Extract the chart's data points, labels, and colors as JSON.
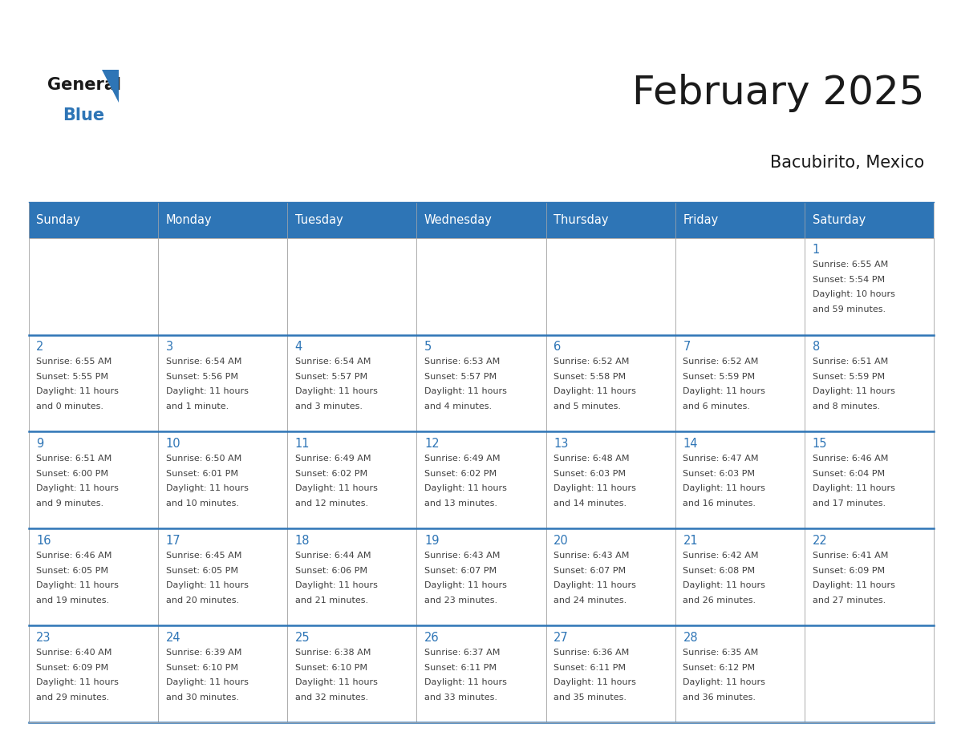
{
  "title": "February 2025",
  "subtitle": "Bacubirito, Mexico",
  "header_color": "#2E75B6",
  "header_text_color": "#FFFFFF",
  "day_names": [
    "Sunday",
    "Monday",
    "Tuesday",
    "Wednesday",
    "Thursday",
    "Friday",
    "Saturday"
  ],
  "background_color": "#FFFFFF",
  "cell_bg_color": "#FFFFFF",
  "separator_color": "#2E75B6",
  "day_number_color": "#2E75B6",
  "info_text_color": "#404040",
  "grid_color": "#AAAAAA",
  "calendar_data": [
    [
      null,
      null,
      null,
      null,
      null,
      null,
      {
        "day": 1,
        "sunrise": "6:55 AM",
        "sunset": "5:54 PM",
        "daylight_line1": "Daylight: 10 hours",
        "daylight_line2": "and 59 minutes."
      }
    ],
    [
      {
        "day": 2,
        "sunrise": "6:55 AM",
        "sunset": "5:55 PM",
        "daylight_line1": "Daylight: 11 hours",
        "daylight_line2": "and 0 minutes."
      },
      {
        "day": 3,
        "sunrise": "6:54 AM",
        "sunset": "5:56 PM",
        "daylight_line1": "Daylight: 11 hours",
        "daylight_line2": "and 1 minute."
      },
      {
        "day": 4,
        "sunrise": "6:54 AM",
        "sunset": "5:57 PM",
        "daylight_line1": "Daylight: 11 hours",
        "daylight_line2": "and 3 minutes."
      },
      {
        "day": 5,
        "sunrise": "6:53 AM",
        "sunset": "5:57 PM",
        "daylight_line1": "Daylight: 11 hours",
        "daylight_line2": "and 4 minutes."
      },
      {
        "day": 6,
        "sunrise": "6:52 AM",
        "sunset": "5:58 PM",
        "daylight_line1": "Daylight: 11 hours",
        "daylight_line2": "and 5 minutes."
      },
      {
        "day": 7,
        "sunrise": "6:52 AM",
        "sunset": "5:59 PM",
        "daylight_line1": "Daylight: 11 hours",
        "daylight_line2": "and 6 minutes."
      },
      {
        "day": 8,
        "sunrise": "6:51 AM",
        "sunset": "5:59 PM",
        "daylight_line1": "Daylight: 11 hours",
        "daylight_line2": "and 8 minutes."
      }
    ],
    [
      {
        "day": 9,
        "sunrise": "6:51 AM",
        "sunset": "6:00 PM",
        "daylight_line1": "Daylight: 11 hours",
        "daylight_line2": "and 9 minutes."
      },
      {
        "day": 10,
        "sunrise": "6:50 AM",
        "sunset": "6:01 PM",
        "daylight_line1": "Daylight: 11 hours",
        "daylight_line2": "and 10 minutes."
      },
      {
        "day": 11,
        "sunrise": "6:49 AM",
        "sunset": "6:02 PM",
        "daylight_line1": "Daylight: 11 hours",
        "daylight_line2": "and 12 minutes."
      },
      {
        "day": 12,
        "sunrise": "6:49 AM",
        "sunset": "6:02 PM",
        "daylight_line1": "Daylight: 11 hours",
        "daylight_line2": "and 13 minutes."
      },
      {
        "day": 13,
        "sunrise": "6:48 AM",
        "sunset": "6:03 PM",
        "daylight_line1": "Daylight: 11 hours",
        "daylight_line2": "and 14 minutes."
      },
      {
        "day": 14,
        "sunrise": "6:47 AM",
        "sunset": "6:03 PM",
        "daylight_line1": "Daylight: 11 hours",
        "daylight_line2": "and 16 minutes."
      },
      {
        "day": 15,
        "sunrise": "6:46 AM",
        "sunset": "6:04 PM",
        "daylight_line1": "Daylight: 11 hours",
        "daylight_line2": "and 17 minutes."
      }
    ],
    [
      {
        "day": 16,
        "sunrise": "6:46 AM",
        "sunset": "6:05 PM",
        "daylight_line1": "Daylight: 11 hours",
        "daylight_line2": "and 19 minutes."
      },
      {
        "day": 17,
        "sunrise": "6:45 AM",
        "sunset": "6:05 PM",
        "daylight_line1": "Daylight: 11 hours",
        "daylight_line2": "and 20 minutes."
      },
      {
        "day": 18,
        "sunrise": "6:44 AM",
        "sunset": "6:06 PM",
        "daylight_line1": "Daylight: 11 hours",
        "daylight_line2": "and 21 minutes."
      },
      {
        "day": 19,
        "sunrise": "6:43 AM",
        "sunset": "6:07 PM",
        "daylight_line1": "Daylight: 11 hours",
        "daylight_line2": "and 23 minutes."
      },
      {
        "day": 20,
        "sunrise": "6:43 AM",
        "sunset": "6:07 PM",
        "daylight_line1": "Daylight: 11 hours",
        "daylight_line2": "and 24 minutes."
      },
      {
        "day": 21,
        "sunrise": "6:42 AM",
        "sunset": "6:08 PM",
        "daylight_line1": "Daylight: 11 hours",
        "daylight_line2": "and 26 minutes."
      },
      {
        "day": 22,
        "sunrise": "6:41 AM",
        "sunset": "6:09 PM",
        "daylight_line1": "Daylight: 11 hours",
        "daylight_line2": "and 27 minutes."
      }
    ],
    [
      {
        "day": 23,
        "sunrise": "6:40 AM",
        "sunset": "6:09 PM",
        "daylight_line1": "Daylight: 11 hours",
        "daylight_line2": "and 29 minutes."
      },
      {
        "day": 24,
        "sunrise": "6:39 AM",
        "sunset": "6:10 PM",
        "daylight_line1": "Daylight: 11 hours",
        "daylight_line2": "and 30 minutes."
      },
      {
        "day": 25,
        "sunrise": "6:38 AM",
        "sunset": "6:10 PM",
        "daylight_line1": "Daylight: 11 hours",
        "daylight_line2": "and 32 minutes."
      },
      {
        "day": 26,
        "sunrise": "6:37 AM",
        "sunset": "6:11 PM",
        "daylight_line1": "Daylight: 11 hours",
        "daylight_line2": "and 33 minutes."
      },
      {
        "day": 27,
        "sunrise": "6:36 AM",
        "sunset": "6:11 PM",
        "daylight_line1": "Daylight: 11 hours",
        "daylight_line2": "and 35 minutes."
      },
      {
        "day": 28,
        "sunrise": "6:35 AM",
        "sunset": "6:12 PM",
        "daylight_line1": "Daylight: 11 hours",
        "daylight_line2": "and 36 minutes."
      },
      null
    ]
  ]
}
